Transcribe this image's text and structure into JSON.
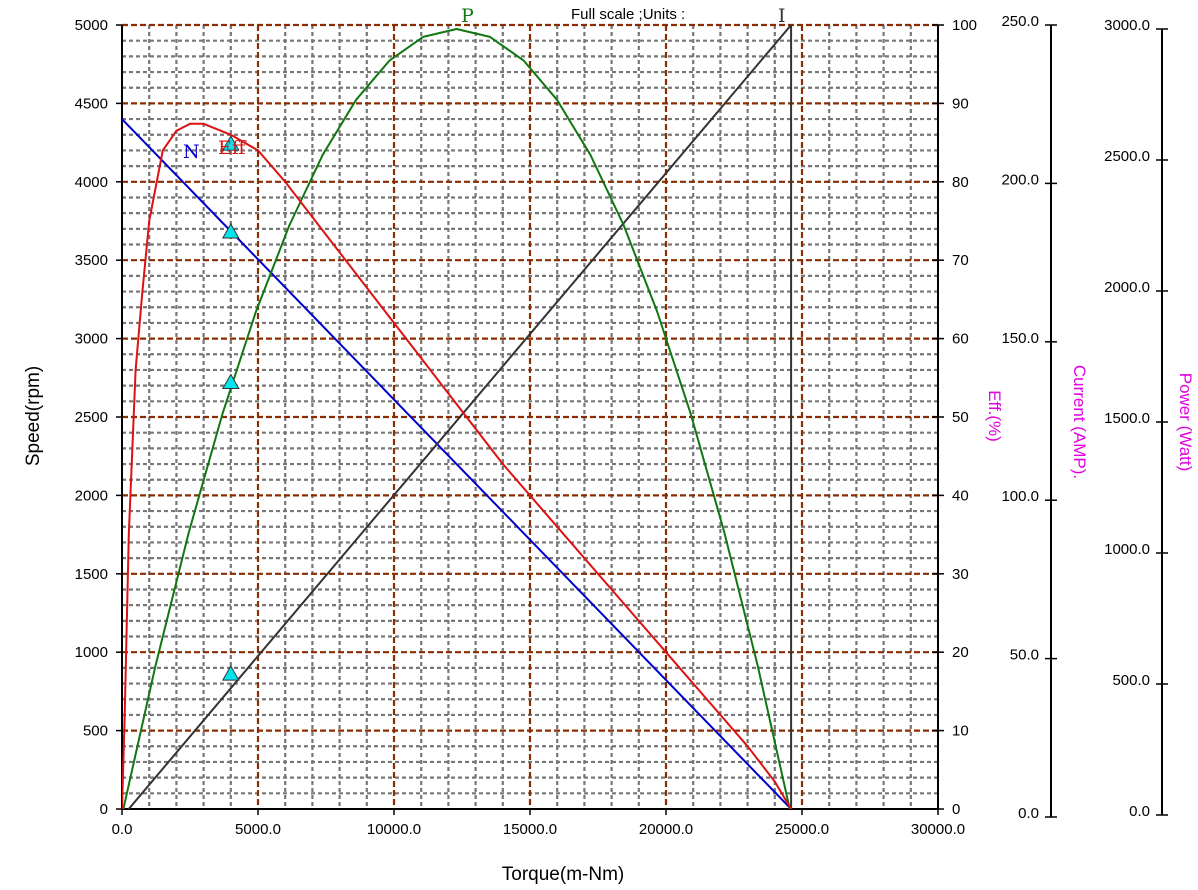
{
  "header": {
    "text": "Full scale ;Units :"
  },
  "chart_data": {
    "type": "line",
    "x": {
      "label": "Torque(m-Nm)",
      "range": [
        0,
        30000
      ],
      "ticks": [
        "0.0",
        "5000.0",
        "10000.0",
        "15000.0",
        "20000.0",
        "25000.0",
        "30000.0"
      ],
      "tick_values": [
        0,
        5000,
        10000,
        15000,
        20000,
        25000,
        30000
      ]
    },
    "y_axes": [
      {
        "id": "speed",
        "label": "Speed(rpm)",
        "range": [
          0,
          5000
        ],
        "ticks": [
          "0",
          "500",
          "1000",
          "1500",
          "2000",
          "2500",
          "3000",
          "3500",
          "4000",
          "4500",
          "5000"
        ],
        "tick_values": [
          0,
          500,
          1000,
          1500,
          2000,
          2500,
          3000,
          3500,
          4000,
          4500,
          5000
        ],
        "position": "left"
      },
      {
        "id": "eff",
        "label": "Eff.(%)",
        "range": [
          0,
          100
        ],
        "ticks": [
          "0",
          "10",
          "20",
          "30",
          "40",
          "50",
          "60",
          "70",
          "80",
          "90",
          "100"
        ],
        "tick_values": [
          0,
          10,
          20,
          30,
          40,
          50,
          60,
          70,
          80,
          90,
          100
        ],
        "position": "right-1"
      },
      {
        "id": "current",
        "label": "Current (AMP).",
        "range": [
          0,
          250
        ],
        "ticks": [
          "0.0",
          "50.0",
          "100.0",
          "150.0",
          "200.0",
          "250.0"
        ],
        "tick_values": [
          0,
          50,
          100,
          150,
          200,
          250
        ],
        "position": "right-2"
      },
      {
        "id": "power",
        "label": "Power (Watt)",
        "range": [
          0,
          3000
        ],
        "ticks": [
          "0.0",
          "500.0",
          "1000.0",
          "1500.0",
          "2000.0",
          "2500.0",
          "3000.0"
        ],
        "tick_values": [
          0,
          500,
          1000,
          1500,
          2000,
          2500,
          3000
        ],
        "position": "right-3"
      }
    ],
    "grid": true,
    "series": [
      {
        "name": "N",
        "axis": "speed",
        "color": "#0000cc",
        "x": [
          0,
          24600
        ],
        "y": [
          4400,
          0
        ]
      },
      {
        "name": "I",
        "axis": "current",
        "color": "#333333",
        "x": [
          0,
          24600,
          24600
        ],
        "y": [
          0,
          250,
          0
        ]
      },
      {
        "name": "P",
        "axis": "power",
        "color": "#117711",
        "x": [
          0,
          1230,
          2460,
          3690,
          4920,
          6150,
          7380,
          8610,
          9840,
          11070,
          12300,
          13530,
          14760,
          15990,
          17220,
          18450,
          19680,
          20910,
          22140,
          23370,
          24600
        ],
        "y": [
          0,
          570,
          1080,
          1530,
          1920,
          2250,
          2520,
          2730,
          2880,
          2970,
          3000,
          2970,
          2880,
          2730,
          2520,
          2250,
          1920,
          1530,
          1080,
          570,
          0
        ]
      },
      {
        "name": "Eff",
        "axis": "eff",
        "color": "#dd1111",
        "x": [
          0,
          100,
          250,
          500,
          750,
          1000,
          1500,
          2000,
          2500,
          3000,
          4000,
          5000,
          6000,
          8000,
          10000,
          12000,
          14000,
          16000,
          18000,
          20000,
          22000,
          23000,
          24000,
          24600
        ],
        "y": [
          0,
          12,
          35,
          56,
          66,
          75,
          84,
          86.5,
          87.4,
          87.4,
          86,
          84,
          80,
          71,
          62,
          53,
          44,
          36,
          28,
          20,
          12,
          8,
          3.5,
          0
        ]
      }
    ],
    "markers": {
      "shape": "triangle",
      "color": "#00e5ee",
      "x": 4000,
      "points": [
        {
          "series": "N",
          "y": 3680
        },
        {
          "series": "P",
          "y": 2720
        },
        {
          "series": "I",
          "y": 860
        },
        {
          "series": "Eff",
          "y": 4240
        }
      ]
    }
  }
}
